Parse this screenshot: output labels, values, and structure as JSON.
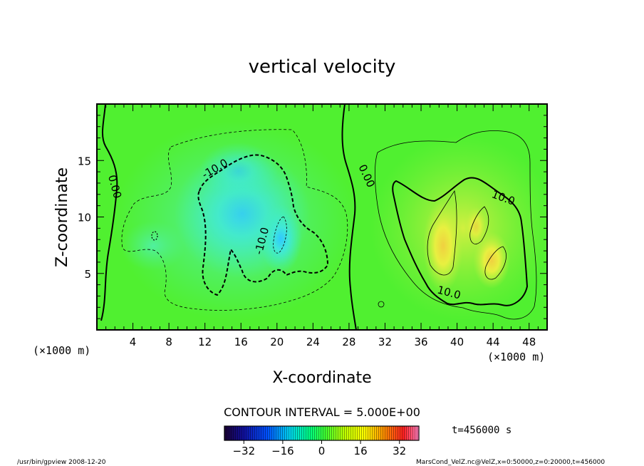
{
  "chart_data": {
    "type": "heatmap",
    "title": "vertical velocity",
    "xlabel": "X-coordinate",
    "ylabel": "Z-coordinate",
    "x_unit_left": "(×1000 m)",
    "x_unit_right": "(×1000 m)",
    "xlim": [
      0,
      50
    ],
    "ylim": [
      0,
      20
    ],
    "x_ticks": [
      4,
      8,
      12,
      16,
      20,
      24,
      28,
      32,
      36,
      40,
      44,
      48
    ],
    "y_ticks": [
      5,
      10,
      15
    ],
    "contour_interval_text": "CONTOUR INTERVAL = 5.000E+00",
    "time_text": "t=456000 s",
    "contour_labels": [
      {
        "text": "0.00",
        "x": 1.6,
        "z": 12.6
      },
      {
        "text": "0.00",
        "x": 29.6,
        "z": 13.5
      },
      {
        "text": "-10.0",
        "x": 13.3,
        "z": 14.0
      },
      {
        "text": "-10.0",
        "x": 18.7,
        "z": 7.8
      },
      {
        "text": "10.0",
        "x": 45.0,
        "z": 11.4
      },
      {
        "text": "10.0",
        "x": 39.0,
        "z": 3.0
      }
    ],
    "features": [
      {
        "kind": "downdraft",
        "center_x": 20.5,
        "center_z": 8.0,
        "min_value": -15
      },
      {
        "kind": "updraft",
        "center_x": 38.5,
        "center_z": 7.5,
        "max_value": 25
      },
      {
        "kind": "updraft",
        "center_x": 43.5,
        "center_z": 6.5,
        "max_value": 20
      }
    ],
    "colorbar": {
      "range": [
        -40,
        40
      ],
      "ticks": [
        -32,
        -16,
        0,
        16,
        32
      ],
      "colors": [
        "#1a0033",
        "#0000a8",
        "#0060ff",
        "#00e0e0",
        "#00ff40",
        "#a0ff00",
        "#ffff00",
        "#ff8000",
        "#ff0000",
        "#ff60b0"
      ]
    }
  },
  "footer": {
    "left": "/usr/bin/gpview   2008-12-20",
    "right": "MarsCond_VelZ.nc@VelZ,x=0:50000,z=0:20000,t=456000"
  }
}
